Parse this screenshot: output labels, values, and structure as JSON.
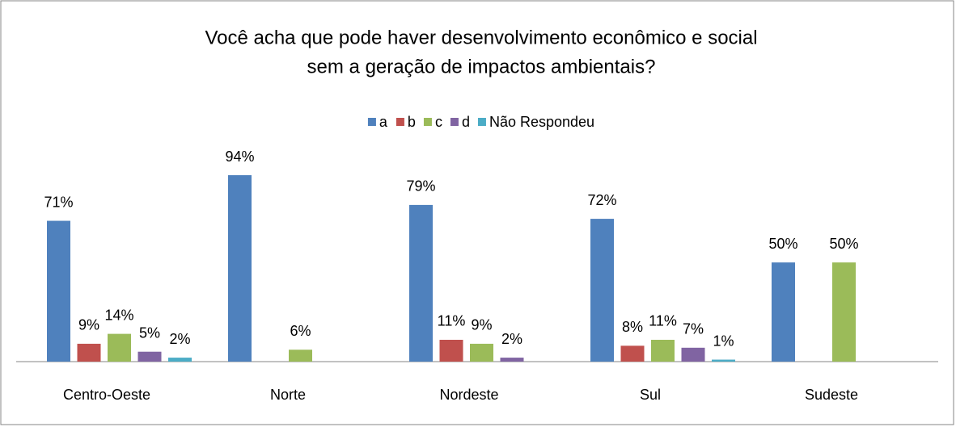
{
  "chart_data": {
    "type": "bar",
    "title": [
      "Você acha que pode haver desenvolvimento econômico e social",
      "sem a geração de impactos ambientais?"
    ],
    "categories": [
      "Centro-Oeste",
      "Norte",
      "Nordeste",
      "Sul",
      "Sudeste"
    ],
    "series": [
      {
        "name": "a",
        "color": "#4f81bd",
        "values": [
          71,
          94,
          79,
          72,
          50
        ],
        "value_labels": [
          "71%",
          "94%",
          "79%",
          "72%",
          "50%"
        ]
      },
      {
        "name": "b",
        "color": "#c0504d",
        "values": [
          9,
          null,
          11,
          8,
          null
        ],
        "value_labels": [
          "9%",
          null,
          "11%",
          "8%",
          null
        ]
      },
      {
        "name": "c",
        "color": "#9bbb59",
        "values": [
          14,
          6,
          9,
          11,
          50
        ],
        "value_labels": [
          "14%",
          "6%",
          "9%",
          "11%",
          "50%"
        ]
      },
      {
        "name": "d",
        "color": "#8064a2",
        "values": [
          5,
          null,
          2,
          7,
          null
        ],
        "value_labels": [
          "5%",
          null,
          "2%",
          "7%",
          null
        ]
      },
      {
        "name": "Não Respondeu",
        "color": "#4bacc6",
        "values": [
          2,
          null,
          null,
          1,
          null
        ],
        "value_labels": [
          "2%",
          null,
          null,
          "1%",
          null
        ]
      }
    ],
    "legend": "top"
  }
}
